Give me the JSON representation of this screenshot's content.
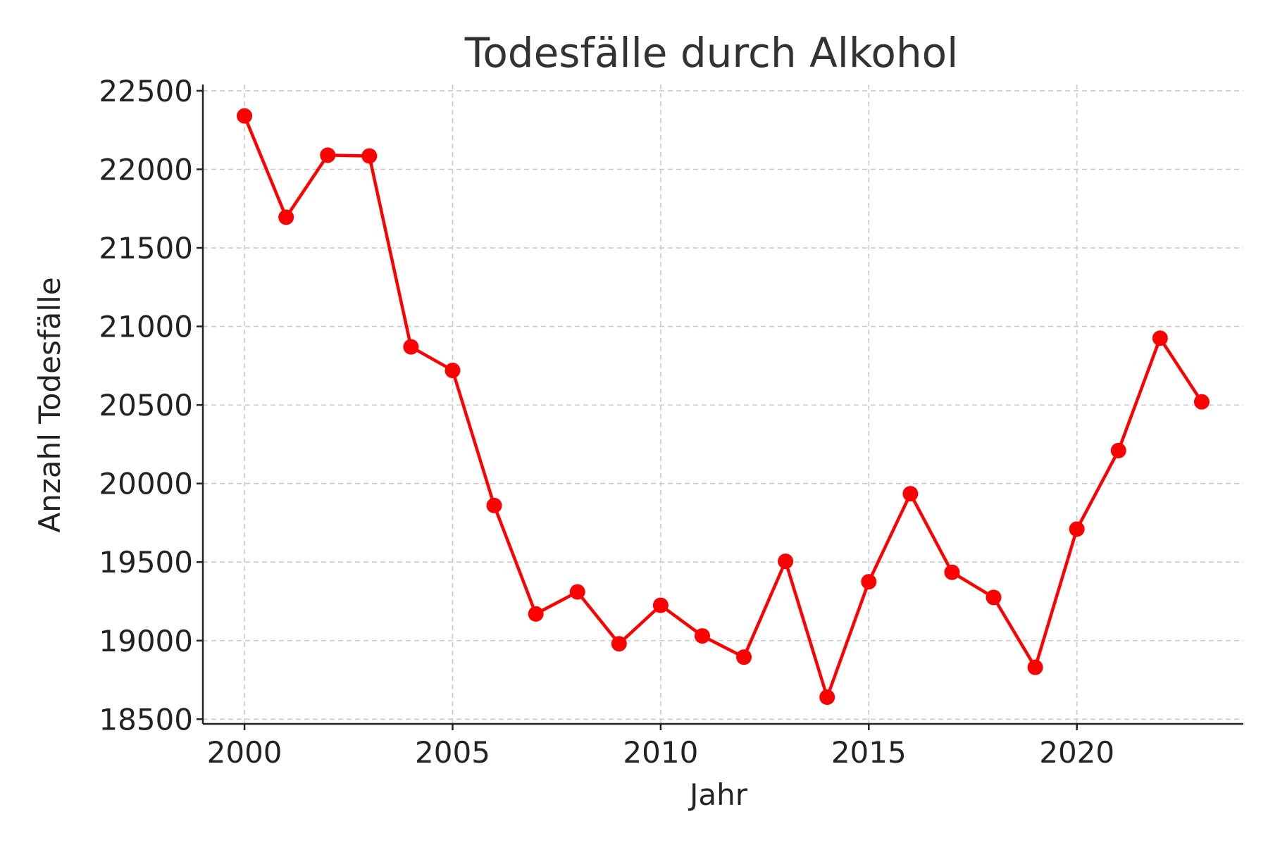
{
  "chart_data": {
    "type": "line",
    "title": "Todesfälle durch Alkohol",
    "xlabel": "Jahr",
    "ylabel": "Anzahl Todesfälle",
    "xlim": [
      1999,
      2024
    ],
    "ylim": [
      18470,
      22540
    ],
    "x_ticks": [
      2000,
      2005,
      2010,
      2015,
      2020
    ],
    "y_ticks": [
      18500,
      19000,
      19500,
      20000,
      20500,
      21000,
      21500,
      22000,
      22500
    ],
    "grid": true,
    "color": "#ff0000",
    "marker": "circle",
    "series": [
      {
        "x": [
          2000,
          2001,
          2002,
          2003,
          2004,
          2005,
          2006,
          2007,
          2008,
          2009,
          2010,
          2011,
          2012,
          2013,
          2014,
          2015,
          2016,
          2017,
          2018,
          2019,
          2020,
          2021,
          2022,
          2023
        ],
        "values": [
          22340,
          21695,
          22090,
          22085,
          20870,
          20720,
          19860,
          19170,
          19310,
          18980,
          19225,
          19030,
          18895,
          19505,
          18640,
          19375,
          19935,
          19435,
          19275,
          18830,
          19710,
          20210,
          20925,
          20520
        ]
      }
    ]
  }
}
